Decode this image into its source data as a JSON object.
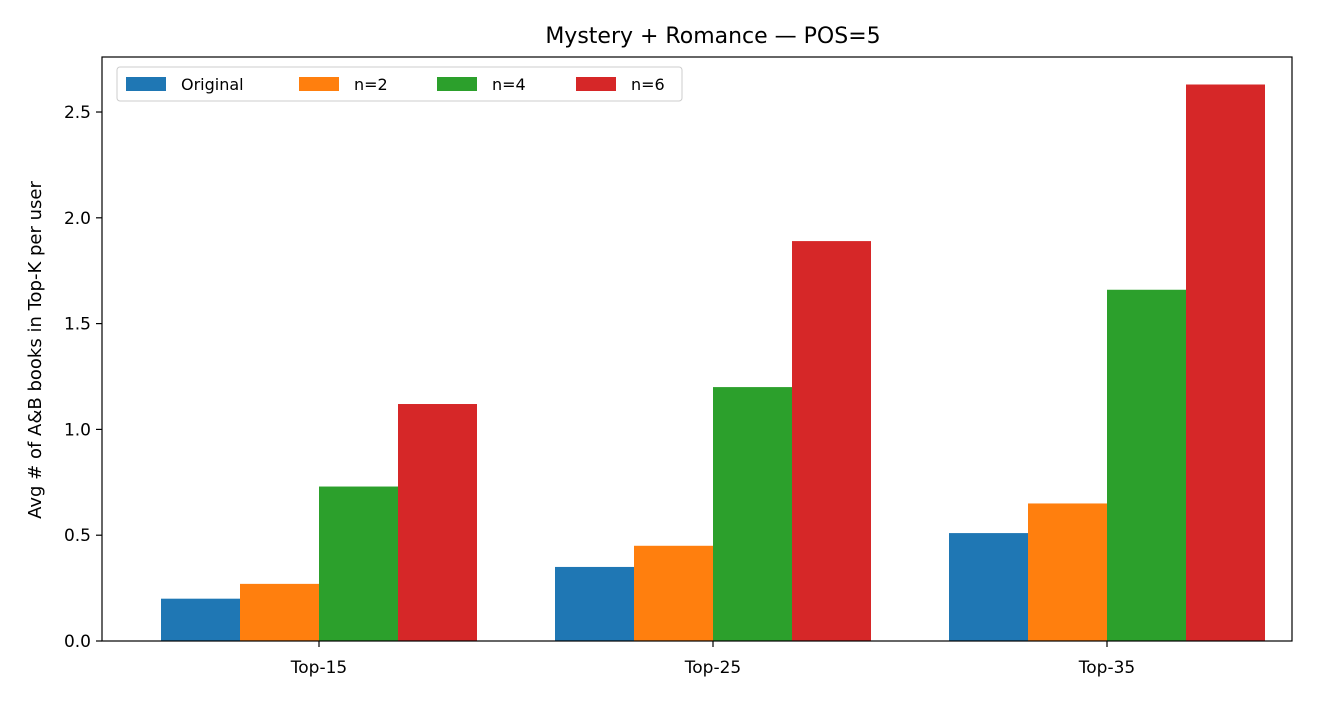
{
  "chart_data": {
    "type": "bar",
    "title": "Mystery + Romance — POS=5",
    "xlabel": "",
    "ylabel": "Avg # of A&B books in Top-K per user",
    "categories": [
      "Top-15",
      "Top-25",
      "Top-35"
    ],
    "series": [
      {
        "name": "Original",
        "values": [
          0.2,
          0.35,
          0.51
        ],
        "color": "#1f77b4"
      },
      {
        "name": "n=2",
        "values": [
          0.27,
          0.45,
          0.65
        ],
        "color": "#ff7f0e"
      },
      {
        "name": "n=4",
        "values": [
          0.73,
          1.2,
          1.66
        ],
        "color": "#2ca02c"
      },
      {
        "name": "n=6",
        "values": [
          1.12,
          1.89,
          2.63
        ],
        "color": "#d62728"
      }
    ],
    "ylim": [
      0,
      2.76
    ],
    "yticks": [
      "0.0",
      "0.5",
      "1.0",
      "1.5",
      "2.0",
      "2.5"
    ],
    "grid": false,
    "legend": {
      "placement": "top-left",
      "columns": 4
    }
  }
}
